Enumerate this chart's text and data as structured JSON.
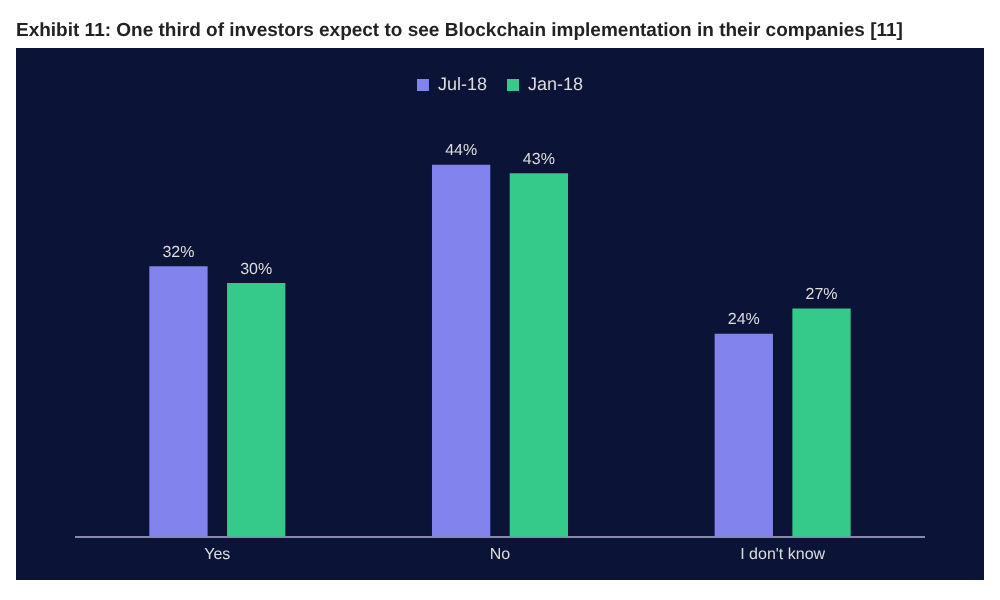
{
  "chart_data": {
    "type": "bar",
    "title": "Exhibit 11: One third of investors expect to see Blockchain implementation in their companies [11]",
    "categories": [
      "Yes",
      "No",
      "I don't know"
    ],
    "series": [
      {
        "name": "Jul-18",
        "color": "#8383ee",
        "values": [
          32,
          44,
          24
        ],
        "value_labels": [
          "32%",
          "44%",
          "24%"
        ]
      },
      {
        "name": "Jan-18",
        "color": "#35c98a",
        "values": [
          30,
          43,
          27
        ],
        "value_labels": [
          "30%",
          "43%",
          "27%"
        ]
      }
    ],
    "legend": "top",
    "grid": false
  }
}
